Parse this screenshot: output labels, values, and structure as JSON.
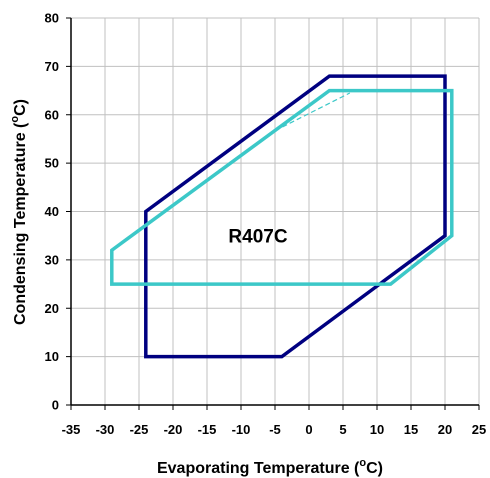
{
  "chart_data": {
    "type": "line",
    "title": "",
    "xlabel": "Evaporating Temperature (",
    "xlabel_unit": "o",
    "xlabel_suffix": "C)",
    "ylabel": "Condensing Temperature (",
    "ylabel_unit": "o",
    "ylabel_suffix": "C)",
    "xlim": [
      -35,
      25
    ],
    "ylim": [
      0,
      80
    ],
    "xticks": [
      -35,
      -30,
      -25,
      -20,
      -15,
      -10,
      -5,
      0,
      5,
      10,
      15,
      20,
      25
    ],
    "yticks": [
      0,
      10,
      20,
      30,
      40,
      50,
      60,
      70,
      80
    ],
    "grid": true,
    "annotation": {
      "text": "R407C",
      "x": -7.5,
      "y": 35
    },
    "series": [
      {
        "color": "#000080",
        "closed": true,
        "points": [
          [
            -24,
            10
          ],
          [
            -4,
            10
          ],
          [
            20,
            35
          ],
          [
            20,
            68
          ],
          [
            3,
            68
          ],
          [
            -24,
            40
          ]
        ]
      },
      {
        "color": "#3CC8C8",
        "closed": true,
        "points": [
          [
            -29,
            25
          ],
          [
            12,
            25
          ],
          [
            21,
            35
          ],
          [
            21,
            65
          ],
          [
            3,
            65
          ],
          [
            -29,
            32
          ]
        ]
      },
      {
        "color": "#3CC8C8",
        "closed": false,
        "dashed": true,
        "points": [
          [
            -6,
            56
          ],
          [
            6,
            64.5
          ]
        ]
      }
    ]
  }
}
